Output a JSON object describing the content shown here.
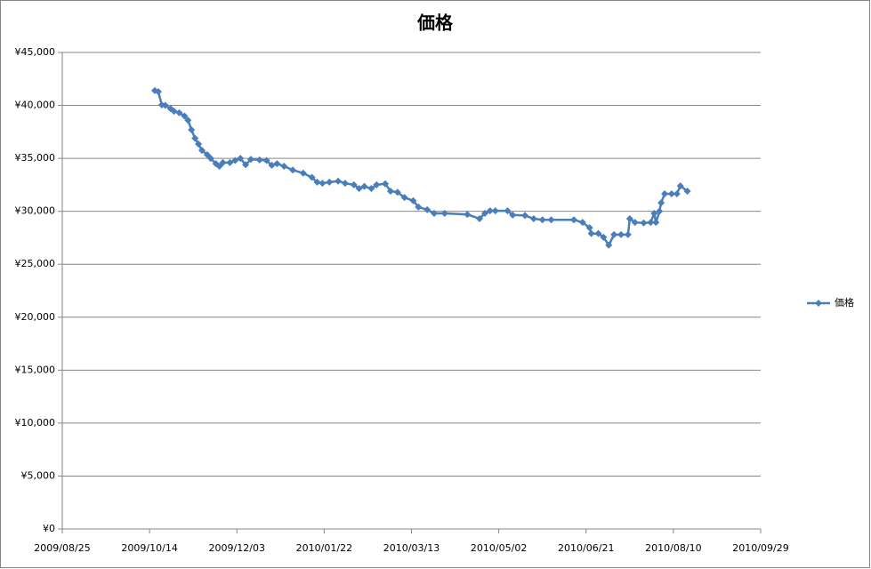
{
  "chart_data": {
    "type": "line",
    "title": "価格",
    "x": [
      "2009/10/17",
      "2009/10/19",
      "2009/10/21",
      "2009/10/23",
      "2009/10/26",
      "2009/10/28",
      "2009/10/31",
      "2009/11/03",
      "2009/11/05",
      "2009/11/07",
      "2009/11/09",
      "2009/11/11",
      "2009/11/13",
      "2009/11/16",
      "2009/11/18",
      "2009/11/21",
      "2009/11/23",
      "2009/11/25",
      "2009/11/29",
      "2009/12/02",
      "2009/12/05",
      "2009/12/08",
      "2009/12/11",
      "2009/12/16",
      "2009/12/20",
      "2009/12/23",
      "2009/12/26",
      "2009/12/30",
      "2010/01/04",
      "2010/01/10",
      "2010/01/15",
      "2010/01/18",
      "2010/01/21",
      "2010/01/25",
      "2010/01/30",
      "2010/02/03",
      "2010/02/08",
      "2010/02/11",
      "2010/02/14",
      "2010/02/18",
      "2010/02/21",
      "2010/02/26",
      "2010/03/01",
      "2010/03/05",
      "2010/03/09",
      "2010/03/14",
      "2010/03/17",
      "2010/03/22",
      "2010/03/26",
      "2010/04/01",
      "2010/04/14",
      "2010/04/21",
      "2010/04/24",
      "2010/04/27",
      "2010/04/30",
      "2010/05/07",
      "2010/05/10",
      "2010/05/17",
      "2010/05/22",
      "2010/05/27",
      "2010/06/01",
      "2010/06/14",
      "2010/06/19",
      "2010/06/23",
      "2010/06/24",
      "2010/06/28",
      "2010/07/01",
      "2010/07/04",
      "2010/07/07",
      "2010/07/11",
      "2010/07/15",
      "2010/07/16",
      "2010/07/19",
      "2010/07/24",
      "2010/07/28",
      "2010/07/30",
      "2010/07/31",
      "2010/08/02",
      "2010/08/03",
      "2010/08/05",
      "2010/08/09",
      "2010/08/12",
      "2010/08/14",
      "2010/08/18"
    ],
    "series": [
      {
        "name": "価格",
        "color": "#4a7ebb",
        "values": [
          41400,
          41300,
          40050,
          40000,
          39700,
          39450,
          39300,
          39000,
          38600,
          37700,
          36900,
          36350,
          35750,
          35350,
          35000,
          34500,
          34250,
          34600,
          34600,
          34800,
          35000,
          34400,
          34900,
          34850,
          34800,
          34350,
          34500,
          34250,
          33900,
          33600,
          33200,
          32750,
          32650,
          32750,
          32850,
          32650,
          32500,
          32150,
          32350,
          32150,
          32500,
          32600,
          31900,
          31800,
          31300,
          31000,
          30400,
          30150,
          29800,
          29800,
          29700,
          29300,
          29800,
          30050,
          30050,
          30050,
          29650,
          29600,
          29300,
          29200,
          29200,
          29200,
          28950,
          28450,
          27900,
          27900,
          27550,
          26800,
          27800,
          27800,
          27800,
          29300,
          28950,
          28900,
          28950,
          29800,
          28950,
          30000,
          30800,
          31650,
          31650,
          31650,
          32400,
          31900
        ]
      }
    ],
    "xlim": [
      "2009/08/25",
      "2010/09/29"
    ],
    "xticks": [
      "2009/08/25",
      "2009/10/14",
      "2009/12/03",
      "2010/01/22",
      "2010/03/13",
      "2010/05/02",
      "2010/06/21",
      "2010/08/10",
      "2010/09/29"
    ],
    "ylim": [
      0,
      45000
    ],
    "yticks": [
      {
        "value": 0,
        "label": "¥0"
      },
      {
        "value": 5000,
        "label": "¥5,000"
      },
      {
        "value": 10000,
        "label": "¥10,000"
      },
      {
        "value": 15000,
        "label": "¥15,000"
      },
      {
        "value": 20000,
        "label": "¥20,000"
      },
      {
        "value": 25000,
        "label": "¥25,000"
      },
      {
        "value": 30000,
        "label": "¥30,000"
      },
      {
        "value": 35000,
        "label": "¥35,000"
      },
      {
        "value": 40000,
        "label": "¥40,000"
      },
      {
        "value": 45000,
        "label": "¥45,000"
      }
    ],
    "grid": true,
    "legend": "right"
  }
}
